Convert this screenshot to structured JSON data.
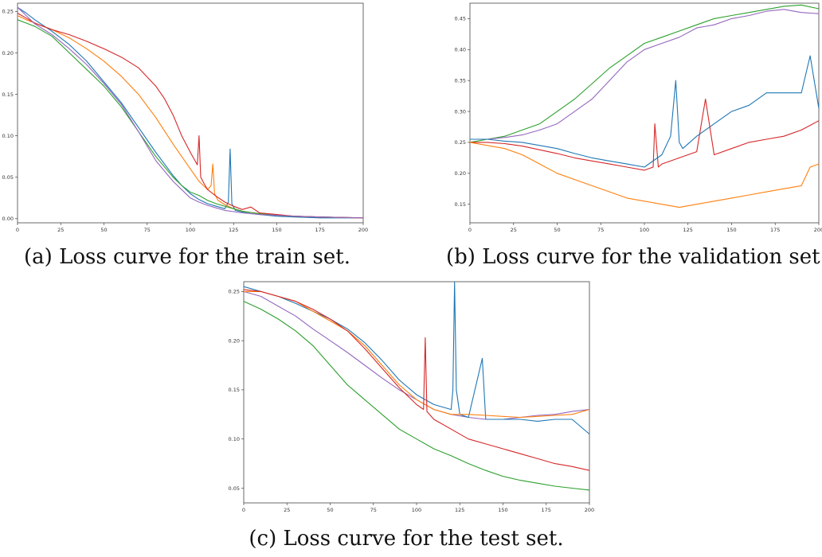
{
  "captions": {
    "a": "(a) Loss curve for the train set.",
    "b": "(b) Loss curve for the validation set.",
    "c": "(c) Loss curve for the test set."
  },
  "colors": {
    "blue": "#1f77b4",
    "orange": "#ff7f0e",
    "green": "#2ca02c",
    "red": "#d62728",
    "purple": "#9467bd"
  },
  "chart_data": [
    {
      "type": "line",
      "id": "a",
      "title": "",
      "xlabel": "",
      "ylabel": "",
      "xlim": [
        0,
        200
      ],
      "ylim": [
        -0.005,
        0.26
      ],
      "xticks": [
        0,
        25,
        50,
        75,
        100,
        125,
        150,
        175,
        200
      ],
      "yticks": [
        0.0,
        0.05,
        0.1,
        0.15,
        0.2,
        0.25
      ],
      "grid": false,
      "series": [
        {
          "color": "#1f77b4",
          "x": [
            0,
            5,
            10,
            20,
            30,
            40,
            50,
            60,
            70,
            80,
            90,
            95,
            100,
            105,
            110,
            115,
            120,
            122,
            123,
            124,
            126,
            130,
            135,
            140,
            150,
            160,
            175,
            200
          ],
          "y": [
            0.255,
            0.248,
            0.24,
            0.226,
            0.21,
            0.19,
            0.165,
            0.14,
            0.11,
            0.08,
            0.052,
            0.04,
            0.03,
            0.023,
            0.018,
            0.015,
            0.012,
            0.02,
            0.084,
            0.018,
            0.01,
            0.008,
            0.006,
            0.005,
            0.003,
            0.002,
            0.001,
            0.001
          ]
        },
        {
          "color": "#ff7f0e",
          "x": [
            0,
            5,
            10,
            20,
            30,
            40,
            50,
            60,
            70,
            80,
            90,
            95,
            100,
            105,
            110,
            112,
            113,
            114,
            116,
            120,
            125,
            130,
            140,
            150,
            160,
            175,
            200
          ],
          "y": [
            0.245,
            0.24,
            0.236,
            0.228,
            0.218,
            0.205,
            0.19,
            0.172,
            0.15,
            0.122,
            0.09,
            0.075,
            0.06,
            0.045,
            0.035,
            0.04,
            0.066,
            0.03,
            0.022,
            0.017,
            0.012,
            0.009,
            0.006,
            0.004,
            0.003,
            0.002,
            0.001
          ]
        },
        {
          "color": "#2ca02c",
          "x": [
            0,
            5,
            10,
            20,
            30,
            40,
            50,
            60,
            70,
            80,
            90,
            95,
            100,
            105,
            110,
            115,
            120,
            125,
            130,
            140,
            150,
            160,
            175,
            200
          ],
          "y": [
            0.24,
            0.236,
            0.232,
            0.22,
            0.2,
            0.18,
            0.16,
            0.135,
            0.105,
            0.075,
            0.05,
            0.04,
            0.032,
            0.028,
            0.022,
            0.018,
            0.015,
            0.012,
            0.009,
            0.006,
            0.004,
            0.003,
            0.002,
            0.001
          ]
        },
        {
          "color": "#d62728",
          "x": [
            0,
            5,
            10,
            20,
            30,
            40,
            50,
            60,
            70,
            80,
            85,
            90,
            95,
            100,
            104,
            105,
            106,
            108,
            110,
            115,
            120,
            125,
            130,
            135,
            140,
            150,
            160,
            175,
            200
          ],
          "y": [
            0.248,
            0.242,
            0.236,
            0.228,
            0.222,
            0.214,
            0.205,
            0.195,
            0.182,
            0.16,
            0.145,
            0.125,
            0.1,
            0.08,
            0.065,
            0.1,
            0.05,
            0.042,
            0.035,
            0.027,
            0.02,
            0.015,
            0.011,
            0.014,
            0.007,
            0.005,
            0.003,
            0.002,
            0.001
          ]
        },
        {
          "color": "#9467bd",
          "x": [
            0,
            5,
            10,
            20,
            30,
            40,
            50,
            60,
            70,
            80,
            90,
            95,
            100,
            105,
            110,
            115,
            120,
            130,
            140,
            150,
            160,
            175,
            200
          ],
          "y": [
            0.255,
            0.245,
            0.235,
            0.222,
            0.205,
            0.186,
            0.163,
            0.138,
            0.105,
            0.07,
            0.045,
            0.035,
            0.025,
            0.02,
            0.016,
            0.013,
            0.01,
            0.007,
            0.005,
            0.004,
            0.003,
            0.002,
            0.001
          ]
        }
      ]
    },
    {
      "type": "line",
      "id": "b",
      "title": "",
      "xlabel": "",
      "ylabel": "",
      "xlim": [
        0,
        200
      ],
      "ylim": [
        0.12,
        0.475
      ],
      "xticks": [
        0,
        25,
        50,
        75,
        100,
        125,
        150,
        175,
        200
      ],
      "yticks": [
        0.15,
        0.2,
        0.25,
        0.3,
        0.35,
        0.4,
        0.45
      ],
      "grid": false,
      "series": [
        {
          "color": "#2ca02c",
          "x": [
            0,
            10,
            20,
            30,
            40,
            50,
            60,
            70,
            80,
            90,
            100,
            110,
            120,
            130,
            140,
            150,
            160,
            170,
            180,
            190,
            200
          ],
          "y": [
            0.25,
            0.255,
            0.26,
            0.27,
            0.28,
            0.3,
            0.32,
            0.345,
            0.37,
            0.39,
            0.41,
            0.42,
            0.43,
            0.44,
            0.45,
            0.455,
            0.46,
            0.465,
            0.47,
            0.472,
            0.466
          ]
        },
        {
          "color": "#9467bd",
          "x": [
            0,
            10,
            20,
            30,
            40,
            50,
            60,
            70,
            80,
            90,
            100,
            110,
            120,
            130,
            140,
            150,
            160,
            170,
            180,
            190,
            200
          ],
          "y": [
            0.255,
            0.255,
            0.258,
            0.262,
            0.27,
            0.28,
            0.3,
            0.32,
            0.35,
            0.38,
            0.4,
            0.41,
            0.42,
            0.435,
            0.44,
            0.45,
            0.455,
            0.462,
            0.465,
            0.46,
            0.458
          ]
        },
        {
          "color": "#1f77b4",
          "x": [
            0,
            10,
            20,
            30,
            40,
            50,
            60,
            70,
            80,
            90,
            100,
            110,
            115,
            118,
            120,
            122,
            130,
            140,
            150,
            160,
            170,
            180,
            190,
            195,
            200
          ],
          "y": [
            0.255,
            0.255,
            0.252,
            0.25,
            0.245,
            0.24,
            0.232,
            0.225,
            0.22,
            0.215,
            0.21,
            0.23,
            0.26,
            0.35,
            0.25,
            0.24,
            0.26,
            0.28,
            0.3,
            0.31,
            0.33,
            0.33,
            0.33,
            0.39,
            0.305
          ]
        },
        {
          "color": "#d62728",
          "x": [
            0,
            10,
            20,
            30,
            40,
            50,
            60,
            70,
            80,
            90,
            100,
            105,
            106,
            108,
            110,
            120,
            130,
            135,
            140,
            150,
            160,
            170,
            180,
            190,
            200
          ],
          "y": [
            0.25,
            0.25,
            0.248,
            0.244,
            0.238,
            0.232,
            0.225,
            0.22,
            0.215,
            0.21,
            0.205,
            0.21,
            0.28,
            0.21,
            0.215,
            0.225,
            0.235,
            0.32,
            0.23,
            0.24,
            0.25,
            0.255,
            0.26,
            0.27,
            0.285
          ]
        },
        {
          "color": "#ff7f0e",
          "x": [
            0,
            10,
            20,
            30,
            40,
            50,
            60,
            70,
            80,
            90,
            100,
            110,
            120,
            130,
            140,
            150,
            160,
            170,
            180,
            190,
            195,
            200
          ],
          "y": [
            0.25,
            0.245,
            0.24,
            0.23,
            0.215,
            0.2,
            0.19,
            0.18,
            0.17,
            0.16,
            0.155,
            0.15,
            0.145,
            0.15,
            0.155,
            0.16,
            0.165,
            0.17,
            0.175,
            0.18,
            0.21,
            0.215
          ]
        }
      ]
    },
    {
      "type": "line",
      "id": "c",
      "title": "",
      "xlabel": "",
      "ylabel": "",
      "xlim": [
        0,
        200
      ],
      "ylim": [
        0.035,
        0.26
      ],
      "xticks": [
        0,
        25,
        50,
        75,
        100,
        125,
        150,
        175,
        200
      ],
      "yticks": [
        0.05,
        0.1,
        0.15,
        0.2,
        0.25
      ],
      "grid": false,
      "series": [
        {
          "color": "#2ca02c",
          "x": [
            0,
            10,
            20,
            30,
            40,
            50,
            60,
            70,
            80,
            90,
            100,
            110,
            120,
            130,
            140,
            150,
            160,
            170,
            180,
            190,
            200
          ],
          "y": [
            0.24,
            0.232,
            0.222,
            0.21,
            0.195,
            0.175,
            0.155,
            0.14,
            0.125,
            0.11,
            0.1,
            0.09,
            0.083,
            0.075,
            0.068,
            0.062,
            0.058,
            0.055,
            0.052,
            0.05,
            0.048
          ]
        },
        {
          "color": "#9467bd",
          "x": [
            0,
            10,
            20,
            30,
            40,
            50,
            60,
            70,
            80,
            90,
            100,
            110,
            120,
            130,
            140,
            150,
            160,
            170,
            180,
            190,
            200
          ],
          "y": [
            0.25,
            0.245,
            0.235,
            0.225,
            0.212,
            0.2,
            0.188,
            0.175,
            0.162,
            0.15,
            0.14,
            0.13,
            0.125,
            0.122,
            0.12,
            0.12,
            0.122,
            0.124,
            0.125,
            0.128,
            0.13
          ]
        },
        {
          "color": "#1f77b4",
          "x": [
            0,
            10,
            20,
            30,
            40,
            50,
            60,
            70,
            80,
            90,
            100,
            110,
            120,
            121,
            122,
            123,
            125,
            130,
            138,
            140,
            150,
            160,
            170,
            180,
            190,
            200
          ],
          "y": [
            0.255,
            0.25,
            0.245,
            0.238,
            0.23,
            0.222,
            0.212,
            0.198,
            0.18,
            0.16,
            0.145,
            0.135,
            0.13,
            0.15,
            0.26,
            0.15,
            0.125,
            0.122,
            0.182,
            0.12,
            0.12,
            0.12,
            0.118,
            0.12,
            0.12,
            0.105
          ]
        },
        {
          "color": "#ff7f0e",
          "x": [
            0,
            10,
            20,
            30,
            40,
            50,
            60,
            70,
            80,
            90,
            100,
            110,
            120,
            130,
            140,
            150,
            160,
            170,
            180,
            190,
            200
          ],
          "y": [
            0.25,
            0.25,
            0.245,
            0.24,
            0.23,
            0.22,
            0.21,
            0.195,
            0.175,
            0.155,
            0.14,
            0.13,
            0.125,
            0.125,
            0.124,
            0.123,
            0.122,
            0.123,
            0.124,
            0.125,
            0.13
          ]
        },
        {
          "color": "#d62728",
          "x": [
            0,
            10,
            20,
            30,
            40,
            50,
            60,
            70,
            80,
            90,
            100,
            104,
            105,
            106,
            110,
            120,
            130,
            140,
            150,
            160,
            170,
            180,
            190,
            200
          ],
          "y": [
            0.252,
            0.25,
            0.245,
            0.24,
            0.232,
            0.222,
            0.21,
            0.192,
            0.172,
            0.152,
            0.135,
            0.13,
            0.203,
            0.128,
            0.12,
            0.11,
            0.1,
            0.095,
            0.09,
            0.085,
            0.08,
            0.075,
            0.072,
            0.068
          ]
        }
      ]
    }
  ]
}
